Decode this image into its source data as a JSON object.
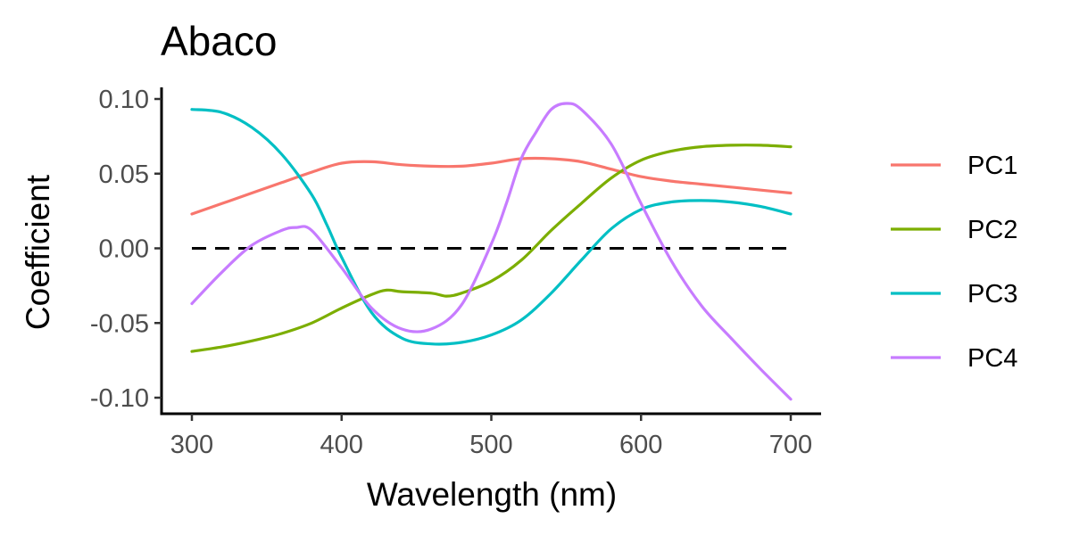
{
  "chart_data": {
    "type": "line",
    "title": "Abaco",
    "xlabel": "Wavelength (nm)",
    "ylabel": "Coefficient",
    "xlim": [
      300,
      700
    ],
    "ylim": [
      -0.11,
      0.11
    ],
    "x_ticks": [
      300,
      400,
      500,
      600,
      700
    ],
    "x_tick_labels": [
      "300",
      "400",
      "500",
      "600",
      "700"
    ],
    "y_ticks": [
      -0.1,
      -0.05,
      0.0,
      0.05,
      0.1
    ],
    "y_tick_labels": [
      "-0.10",
      "-0.05",
      "0.00",
      "0.05",
      "0.10"
    ],
    "reference_line": {
      "y": 0,
      "style": "dashed",
      "color": "#000000"
    },
    "grid": false,
    "legend_position": "right",
    "series": [
      {
        "name": "PC1",
        "color": "#F8766D",
        "x": [
          300,
          320,
          340,
          360,
          380,
          400,
          420,
          440,
          460,
          480,
          500,
          520,
          540,
          560,
          580,
          600,
          620,
          640,
          660,
          680,
          700
        ],
        "y": [
          0.023,
          0.03,
          0.037,
          0.044,
          0.051,
          0.057,
          0.058,
          0.056,
          0.055,
          0.055,
          0.057,
          0.06,
          0.06,
          0.058,
          0.053,
          0.048,
          0.045,
          0.043,
          0.041,
          0.039,
          0.037
        ]
      },
      {
        "name": "PC2",
        "color": "#7CAE00",
        "x": [
          300,
          320,
          340,
          360,
          380,
          400,
          420,
          430,
          440,
          460,
          470,
          480,
          500,
          520,
          540,
          560,
          580,
          600,
          620,
          640,
          660,
          680,
          700
        ],
        "y": [
          -0.069,
          -0.066,
          -0.062,
          -0.057,
          -0.05,
          -0.04,
          -0.031,
          -0.028,
          -0.029,
          -0.03,
          -0.032,
          -0.03,
          -0.022,
          -0.008,
          0.012,
          0.03,
          0.047,
          0.059,
          0.065,
          0.068,
          0.069,
          0.069,
          0.068
        ]
      },
      {
        "name": "PC3",
        "color": "#00BFC4",
        "x": [
          300,
          320,
          340,
          360,
          380,
          390,
          400,
          420,
          440,
          460,
          480,
          500,
          520,
          540,
          560,
          580,
          600,
          620,
          640,
          660,
          680,
          700
        ],
        "y": [
          0.093,
          0.091,
          0.081,
          0.063,
          0.036,
          0.016,
          -0.006,
          -0.043,
          -0.06,
          -0.064,
          -0.063,
          -0.058,
          -0.048,
          -0.03,
          -0.008,
          0.013,
          0.026,
          0.031,
          0.032,
          0.031,
          0.028,
          0.023
        ]
      },
      {
        "name": "PC4",
        "color": "#C77CFF",
        "x": [
          300,
          320,
          340,
          360,
          370,
          380,
          400,
          420,
          440,
          460,
          480,
          500,
          510,
          520,
          530,
          540,
          550,
          560,
          580,
          600,
          620,
          640,
          660,
          680,
          700
        ],
        "y": [
          -0.037,
          -0.016,
          0.002,
          0.012,
          0.014,
          0.012,
          -0.013,
          -0.04,
          -0.054,
          -0.054,
          -0.038,
          0.003,
          0.03,
          0.06,
          0.078,
          0.093,
          0.097,
          0.093,
          0.07,
          0.03,
          -0.008,
          -0.038,
          -0.06,
          -0.081,
          -0.101
        ]
      }
    ]
  }
}
